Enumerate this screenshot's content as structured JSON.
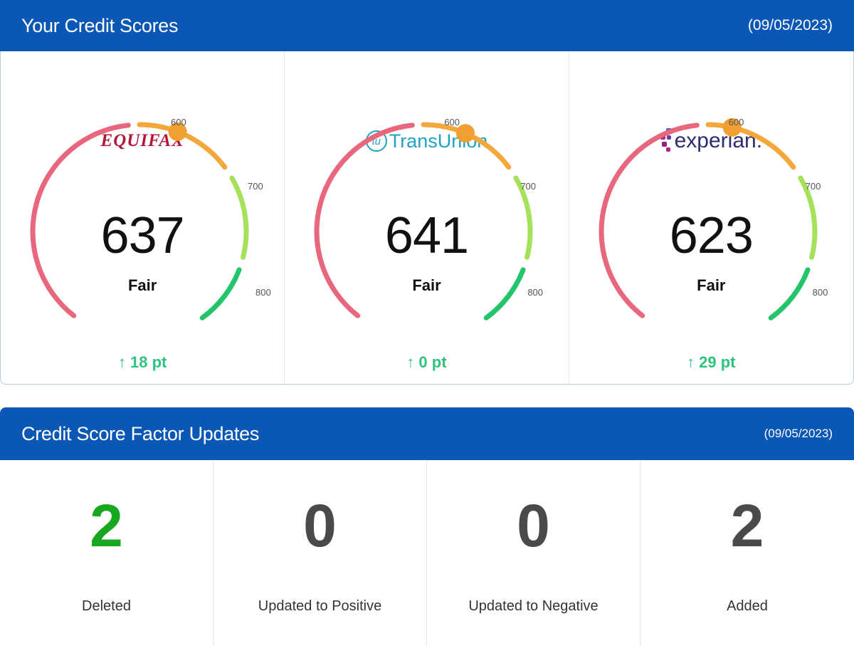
{
  "scores_panel": {
    "title": "Your Credit Scores",
    "date": "(09/05/2023)"
  },
  "gauge_ticks": [
    "600",
    "700",
    "800"
  ],
  "bureaus": [
    {
      "name": "EQUIFAX",
      "score": "637",
      "rating": "Fair",
      "change": "18 pt",
      "score_number": 637
    },
    {
      "name": "TransUnion",
      "score": "641",
      "rating": "Fair",
      "change": "0 pt",
      "score_number": 641
    },
    {
      "name": "experian.",
      "score": "623",
      "rating": "Fair",
      "change": "29 pt",
      "score_number": 623
    }
  ],
  "change_arrow": "↑",
  "gauge_colors": {
    "poor": "#e8677c",
    "fair": "#f4a83c",
    "good": "#a5e15b",
    "excellent": "#22c56a",
    "marker": "#f0a030"
  },
  "factors_panel": {
    "title": "Credit Score Factor Updates",
    "date": "(09/05/2023)"
  },
  "factors": [
    {
      "value": "2",
      "label": "Deleted",
      "color": "#17a81f"
    },
    {
      "value": "0",
      "label": "Updated to Positive",
      "color": "#4a4a4a"
    },
    {
      "value": "0",
      "label": "Updated to Negative",
      "color": "#4a4a4a"
    },
    {
      "value": "2",
      "label": "Added",
      "color": "#4a4a4a"
    }
  ]
}
